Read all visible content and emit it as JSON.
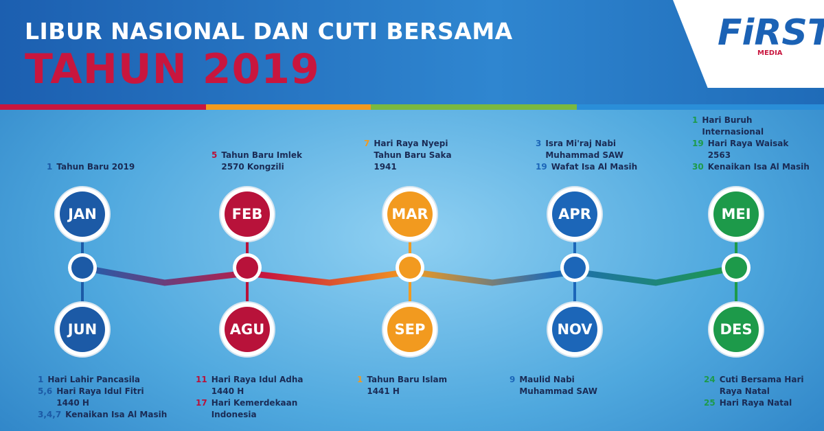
{
  "header": {
    "title_line1": "LIBUR NASIONAL DAN CUTI BERSAMA",
    "title_line2": "TAHUN 2019",
    "logo": "FiRST",
    "logo_sub": "MEDIA"
  },
  "columns": [
    {
      "top": {
        "month": "JAN",
        "holidays": [
          {
            "date": "1",
            "name": "Tahun Baru 2019"
          }
        ]
      },
      "bottom": {
        "month": "JUN",
        "holidays": [
          {
            "date": "1",
            "name": "Hari Lahir Pancasila"
          },
          {
            "date": "5,6",
            "name": "Hari Raya Idul Fitri 1440 H"
          },
          {
            "date": "3,4,7",
            "name": "Kenaikan Isa Al Masih"
          }
        ]
      }
    },
    {
      "top": {
        "month": "FEB",
        "holidays": [
          {
            "date": "5",
            "name": "Tahun Baru Imlek 2570 Kongzili"
          }
        ]
      },
      "bottom": {
        "month": "AGU",
        "holidays": [
          {
            "date": "11",
            "name": "Hari Raya Idul Adha 1440 H"
          },
          {
            "date": "17",
            "name": "Hari Kemerdekaan Indonesia"
          }
        ]
      }
    },
    {
      "top": {
        "month": "MAR",
        "holidays": [
          {
            "date": "7",
            "name": "Hari Raya Nyepi Tahun Baru Saka 1941"
          }
        ]
      },
      "bottom": {
        "month": "SEP",
        "holidays": [
          {
            "date": "1",
            "name": "Tahun Baru Islam 1441 H"
          }
        ]
      }
    },
    {
      "top": {
        "month": "APR",
        "holidays": [
          {
            "date": "3",
            "name": "Isra Mi'raj Nabi Muhammad SAW"
          },
          {
            "date": "19",
            "name": "Wafat Isa Al Masih"
          }
        ]
      },
      "bottom": {
        "month": "NOV",
        "holidays": [
          {
            "date": "9",
            "name": "Maulid Nabi Muhammad SAW"
          }
        ]
      }
    },
    {
      "top": {
        "month": "MEI",
        "holidays": [
          {
            "date": "1",
            "name": "Hari Buruh Internasional"
          },
          {
            "date": "19",
            "name": "Hari Raya Waisak 2563"
          },
          {
            "date": "30",
            "name": "Kenaikan Isa Al Masih"
          }
        ]
      },
      "bottom": {
        "month": "DES",
        "holidays": [
          {
            "date": "24",
            "name": "Cuti Bersama Hari Raya Natal"
          },
          {
            "date": "25",
            "name": "Hari Raya Natal"
          }
        ]
      }
    }
  ]
}
